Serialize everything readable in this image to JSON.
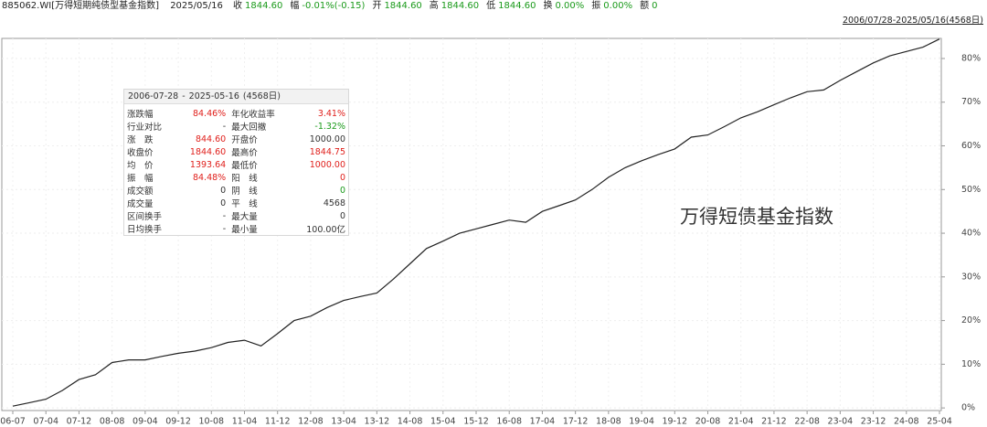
{
  "header": {
    "code": "885062.WI[万得短期纯债型基金指数]",
    "date": "2025/05/16",
    "quotes": [
      {
        "label": "收",
        "value": "1844.60"
      },
      {
        "label": "幅",
        "value": "-0.01%(-0.15)"
      },
      {
        "label": "开",
        "value": "1844.60"
      },
      {
        "label": "高",
        "value": "1844.60"
      },
      {
        "label": "低",
        "value": "1844.60"
      },
      {
        "label": "换",
        "value": "0.00%"
      },
      {
        "label": "振",
        "value": "0.00%"
      },
      {
        "label": "额",
        "value": "0"
      }
    ],
    "range_link": "2006/07/28-2025/05/16(4568日)"
  },
  "info_panel": {
    "start": "2006-07-28",
    "sep": "-",
    "end": "2025-05-16",
    "days": "(4568日)",
    "rows": [
      [
        {
          "text": "涨跌幅"
        },
        {
          "text": "84.46%",
          "color": "#e0201c"
        },
        {
          "text": "年化收益率"
        },
        {
          "text": "3.41%",
          "color": "#e0201c"
        }
      ],
      [
        {
          "text": "行业对比"
        },
        {
          "text": "-"
        },
        {
          "text": "最大回撤"
        },
        {
          "text": "-1.32%",
          "color": "#1a9a1a"
        }
      ],
      [
        {
          "text": "涨　跌"
        },
        {
          "text": "844.60",
          "color": "#e0201c"
        },
        {
          "text": "开盘价"
        },
        {
          "text": "1000.00"
        }
      ],
      [
        {
          "text": "收盘价"
        },
        {
          "text": "1844.60",
          "color": "#e0201c"
        },
        {
          "text": "最高价"
        },
        {
          "text": "1844.75",
          "color": "#e0201c"
        }
      ],
      [
        {
          "text": "均　价"
        },
        {
          "text": "1393.64",
          "color": "#e0201c"
        },
        {
          "text": "最低价"
        },
        {
          "text": "1000.00",
          "color": "#e0201c"
        }
      ],
      [
        {
          "text": "振　幅"
        },
        {
          "text": "84.48%",
          "color": "#e0201c"
        },
        {
          "text": "阳　线"
        },
        {
          "text": "0",
          "color": "#e0201c"
        }
      ],
      [
        {
          "text": "成交额"
        },
        {
          "text": "0"
        },
        {
          "text": "阴　线"
        },
        {
          "text": "0",
          "color": "#1a9a1a"
        }
      ],
      [
        {
          "text": "成交量"
        },
        {
          "text": "0"
        },
        {
          "text": "平　线"
        },
        {
          "text": "4568"
        }
      ],
      [
        {
          "text": "区间换手"
        },
        {
          "text": "-"
        },
        {
          "text": "最大量"
        },
        {
          "text": "0"
        }
      ],
      [
        {
          "text": "日均换手"
        },
        {
          "text": "-"
        },
        {
          "text": "最小量"
        },
        {
          "text": "100.00亿"
        }
      ]
    ]
  },
  "chart_data": {
    "type": "line",
    "annotation": "万得短债基金指数",
    "color": "#222222",
    "categories": [
      "06-07",
      null,
      "07-04",
      null,
      "07-12",
      null,
      "08-08",
      null,
      "09-04",
      null,
      "09-12",
      null,
      "10-08",
      null,
      "11-04",
      null,
      "11-12",
      null,
      "12-08",
      null,
      "13-04",
      null,
      "13-12",
      null,
      "14-08",
      null,
      "15-04",
      null,
      "15-12",
      null,
      "16-08",
      null,
      "17-04",
      null,
      "17-12",
      null,
      "18-08",
      null,
      "19-04",
      null,
      "19-12",
      null,
      "20-08",
      null,
      "21-04",
      null,
      "21-12",
      null,
      "22-08",
      null,
      "23-04",
      null,
      "23-12",
      null,
      "24-08",
      null,
      "25-04"
    ],
    "values": [
      0.4,
      1.2,
      2,
      4,
      6.5,
      7.6,
      10.4,
      11,
      11,
      11.8,
      12.5,
      13,
      13.8,
      15,
      15.5,
      14.2,
      17,
      20,
      21,
      23,
      24.6,
      25.5,
      26.3,
      29.5,
      33,
      36.5,
      38.2,
      40,
      41,
      42,
      43,
      42.5,
      45,
      46.3,
      47.6,
      50,
      52.8,
      55,
      56.6,
      58,
      59.3,
      62,
      62.5,
      64.4,
      66.4,
      67.8,
      69.4,
      71,
      72.4,
      72.8,
      75,
      77,
      79,
      80.6,
      81.6,
      82.6,
      84.46
    ],
    "ylim": [
      -0.6,
      84.6
    ],
    "yticks": [
      {
        "value": 0,
        "label": "0%"
      },
      {
        "value": 10,
        "label": "10%"
      },
      {
        "value": 20,
        "label": "20%"
      },
      {
        "value": 30,
        "label": "30%"
      },
      {
        "value": 40,
        "label": "40%"
      },
      {
        "value": 50,
        "label": "50%"
      },
      {
        "value": 60,
        "label": "60%"
      },
      {
        "value": 70,
        "label": "70%"
      },
      {
        "value": 80,
        "label": "80%"
      }
    ],
    "grid": true
  }
}
